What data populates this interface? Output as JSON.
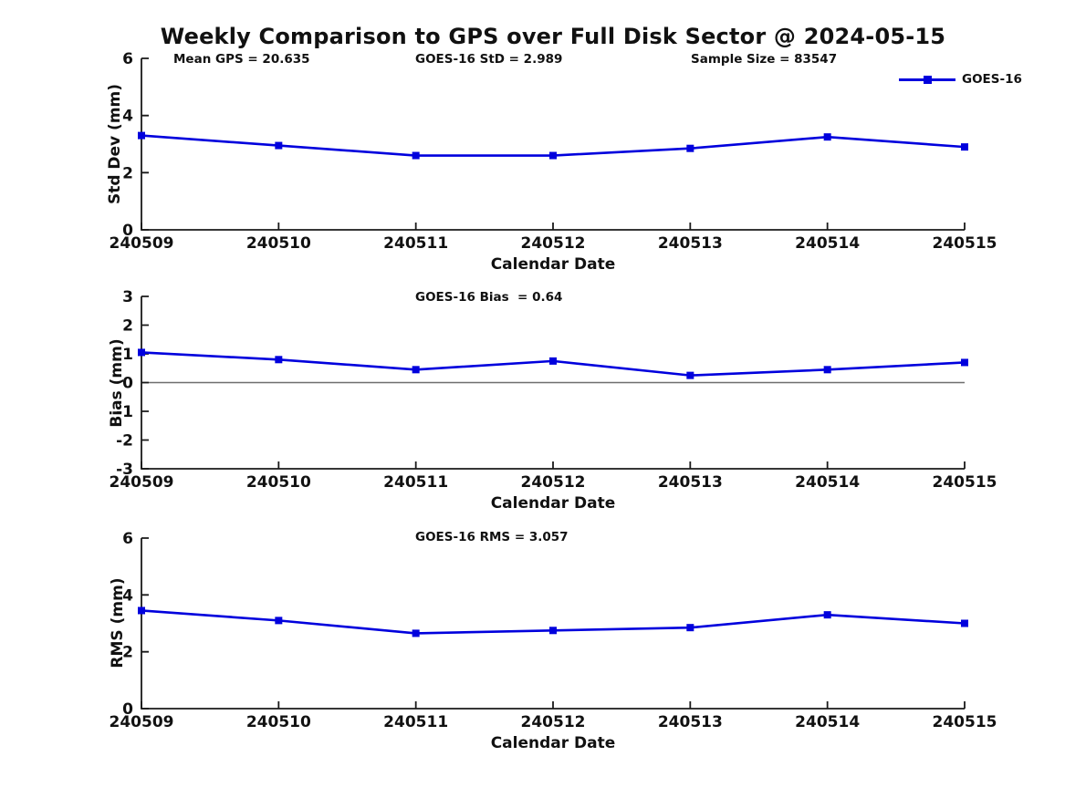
{
  "title": "Weekly Comparison to GPS over Full Disk Sector @ 2024-05-15",
  "legend": {
    "label": "GOES-16"
  },
  "colors": {
    "line": "#0000dd",
    "axis": "#1a1a1a",
    "zero_line": "#6e6e6e",
    "text": "#111111",
    "background": "#ffffff"
  },
  "chart_data": [
    {
      "type": "line",
      "ylabel": "Std Dev (mm)",
      "xlabel": "Calendar Date",
      "categories": [
        "240509",
        "240510",
        "240511",
        "240512",
        "240513",
        "240514",
        "240515"
      ],
      "series": [
        {
          "name": "GOES-16",
          "values": [
            3.3,
            2.95,
            2.6,
            2.6,
            2.85,
            3.25,
            2.9
          ]
        }
      ],
      "ylim": [
        0,
        6
      ],
      "yticks": [
        0,
        2,
        4,
        6
      ],
      "zero_line": false,
      "grid": false,
      "legend_position": "upper right outside",
      "annotations": [
        {
          "text": "Mean GPS = 20.635"
        },
        {
          "text": "GOES-16 StD = 2.989"
        },
        {
          "text": "Sample Size = 83547"
        }
      ]
    },
    {
      "type": "line",
      "ylabel": "Bias (mm)",
      "xlabel": "Calendar Date",
      "categories": [
        "240509",
        "240510",
        "240511",
        "240512",
        "240513",
        "240514",
        "240515"
      ],
      "series": [
        {
          "name": "GOES-16",
          "values": [
            1.05,
            0.8,
            0.45,
            0.75,
            0.25,
            0.45,
            0.7
          ]
        }
      ],
      "ylim": [
        -3,
        3
      ],
      "yticks": [
        -3,
        -2,
        -1,
        0,
        1,
        2,
        3
      ],
      "zero_line": true,
      "grid": false,
      "annotations": [
        {
          "text": "GOES-16 Bias  = 0.64"
        }
      ]
    },
    {
      "type": "line",
      "ylabel": "RMS (mm)",
      "xlabel": "Calendar Date",
      "categories": [
        "240509",
        "240510",
        "240511",
        "240512",
        "240513",
        "240514",
        "240515"
      ],
      "series": [
        {
          "name": "GOES-16",
          "values": [
            3.45,
            3.1,
            2.65,
            2.75,
            2.85,
            3.3,
            3.0
          ]
        }
      ],
      "ylim": [
        0,
        6
      ],
      "yticks": [
        0,
        2,
        4,
        6
      ],
      "zero_line": false,
      "grid": false,
      "annotations": [
        {
          "text": "GOES-16 RMS = 3.057"
        }
      ]
    }
  ]
}
